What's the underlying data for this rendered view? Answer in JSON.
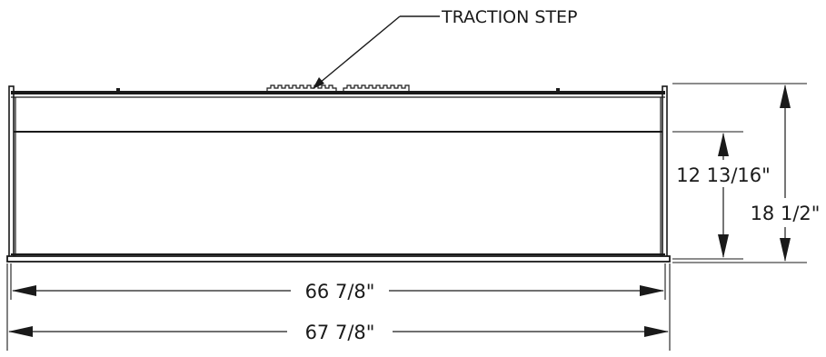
{
  "callout": {
    "label": "TRACTION STEP"
  },
  "dimensions": {
    "inner_width": "66 7/8\"",
    "overall_width": "67 7/8\"",
    "inner_height": "12 13/16\"",
    "overall_height": "18 1/2\""
  },
  "colors": {
    "line": "#1a1a1a",
    "background": "#ffffff"
  }
}
